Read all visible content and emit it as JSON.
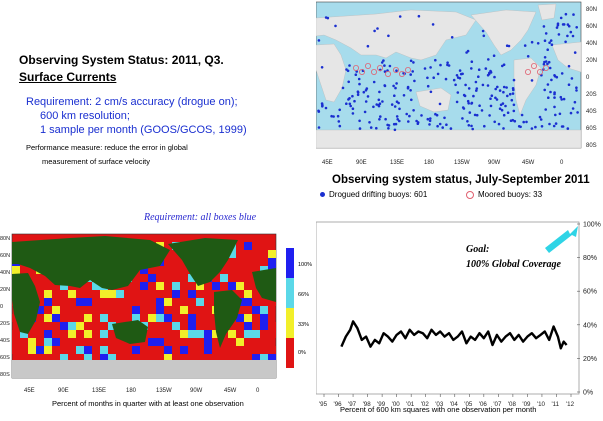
{
  "header": {
    "title": "Observing System Status:  2011, Q3.",
    "subtitle": "Surface Currents"
  },
  "requirement": {
    "line1": "Requirement: 2 cm/s accuracy (drogue on);",
    "line2": "600 km resolution;",
    "line3": "1 sample per month (GOOS/GCOS, 1999)"
  },
  "performance": {
    "line1": "Performance measure: reduce the error in global",
    "line2": "measurement of surface velocity"
  },
  "status_map": {
    "caption": "Observing system status, July-September 2011",
    "legend_drifting": "Drogued drifting buoys: 601",
    "legend_moored": "Moored buoys: 33",
    "lat_labels": [
      "80N",
      "60N",
      "40N",
      "20N",
      "0",
      "20S",
      "40S",
      "60S",
      "80S"
    ],
    "lon_labels": [
      "45E",
      "90E",
      "135E",
      "180",
      "135W",
      "90W",
      "45W",
      "0"
    ],
    "colors": {
      "ocean": "#a7dcec",
      "land": "#e6e6e6",
      "drifting": "#1a2fd0",
      "moored": "#e06070"
    }
  },
  "coverage_map": {
    "requirement_note": "Requirement: all boxes blue",
    "xlabel": "Percent of months in quarter with at least one observation",
    "lat_labels": [
      "80N",
      "60N",
      "40N",
      "20N",
      "0",
      "20S",
      "40S",
      "60S",
      "80S"
    ],
    "lon_labels": [
      "45E",
      "90E",
      "135E",
      "180",
      "135W",
      "90W",
      "45W",
      "0"
    ],
    "colorbar_labels": [
      "100%",
      "66%",
      "33%",
      "0%"
    ],
    "colors": {
      "blue": "#1f1ff0",
      "cyan": "#5bd8e8",
      "yellow": "#f2ef2a",
      "red": "#e01414",
      "land": "#1f5a14",
      "ice": "#c8c8c8"
    }
  },
  "coverage_chart": {
    "goal_line1": "Goal:",
    "goal_line2": "100% Global Coverage",
    "xlabel": "Percent of 600 km squares with one observation per month",
    "arrow_color": "#2fd4e6"
  },
  "chart_data": {
    "type": "line",
    "title": "",
    "xlabel": "Percent of 600 km squares with one observation per month",
    "ylabel": "",
    "x_ticks": [
      "'95",
      "'96",
      "'97",
      "'98",
      "'99",
      "'00",
      "'01",
      "'02",
      "'03",
      "'04",
      "'05",
      "'06",
      "'07",
      "'08",
      "'09",
      "'10",
      "'11",
      "'12"
    ],
    "y_ticks": [
      "0%",
      "20%",
      "40%",
      "60%",
      "80%",
      "100%"
    ],
    "xlim": [
      1995,
      2012
    ],
    "ylim": [
      0,
      100
    ],
    "grid": false,
    "series": [
      {
        "x": [
          1996.2,
          1996.5,
          1996.8,
          1997.0,
          1997.3,
          1997.6,
          1997.9,
          1998.2,
          1998.5,
          1998.8,
          1999.1,
          1999.4,
          1999.7,
          2000.0,
          2000.3,
          2000.6,
          2000.9,
          2001.2,
          2001.5,
          2001.8,
          2002.1,
          2002.4,
          2002.7,
          2003.0,
          2003.3,
          2003.6,
          2003.9,
          2004.2,
          2004.5,
          2004.8,
          2005.1,
          2005.4,
          2005.7,
          2006.0,
          2006.3,
          2006.6,
          2006.9,
          2007.2,
          2007.5,
          2007.8,
          2008.1,
          2008.4,
          2008.7,
          2009.0,
          2009.3,
          2009.6,
          2009.9,
          2010.2,
          2010.5,
          2010.8,
          2011.1,
          2011.3,
          2011.5,
          2011.7
        ],
        "values": [
          27,
          33,
          37,
          42,
          38,
          31,
          33,
          27,
          31,
          29,
          35,
          33,
          30,
          34,
          36,
          32,
          37,
          34,
          36,
          35,
          32,
          37,
          34,
          36,
          33,
          35,
          31,
          33,
          36,
          29,
          33,
          31,
          35,
          32,
          36,
          28,
          34,
          30,
          33,
          35,
          31,
          34,
          30,
          33,
          35,
          32,
          34,
          36,
          31,
          39,
          33,
          26,
          30,
          28
        ]
      }
    ]
  }
}
